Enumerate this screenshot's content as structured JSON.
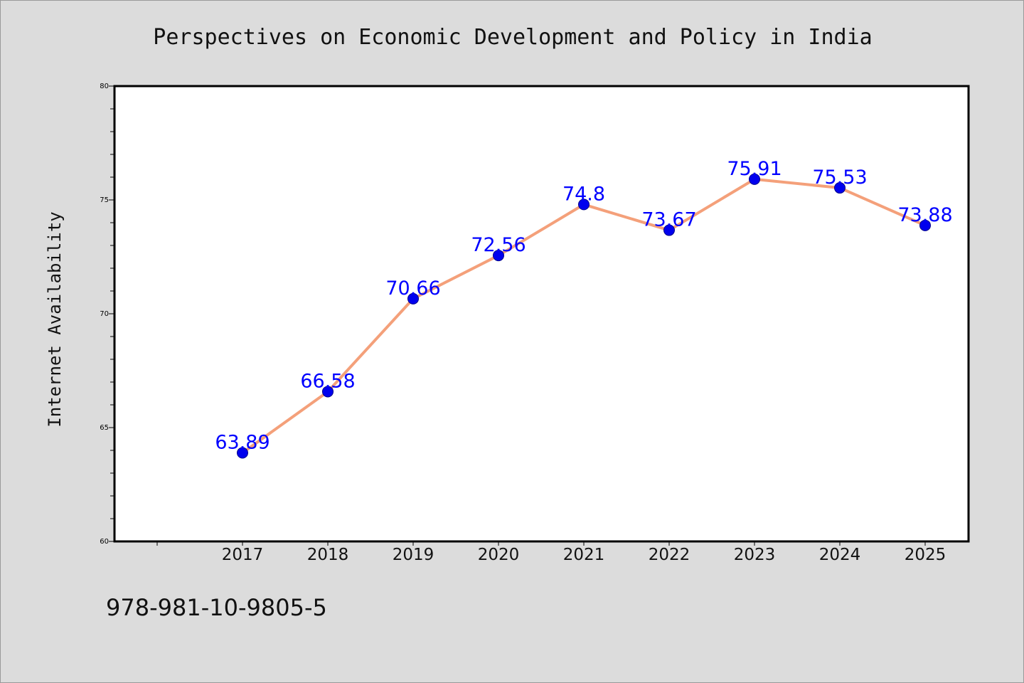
{
  "title": "Perspectives on Economic Development and Policy in India",
  "ylabel": "Internet Availability",
  "footer_code": "978-981-10-9805-5",
  "colors": {
    "line": "#f4a07a",
    "marker": "#0000ee",
    "label": "#0000ff",
    "background": "#dcdcdc",
    "plot_background": "#ffffff"
  },
  "chart_data": {
    "type": "line",
    "title": "Perspectives on Economic Development and Policy in India",
    "xlabel": "",
    "ylabel": "Internet Availability",
    "categories": [
      "2017",
      "2018",
      "2019",
      "2020",
      "2021",
      "2022",
      "2023",
      "2024",
      "2025"
    ],
    "series": [
      {
        "values": [
          63.89,
          66.58,
          70.66,
          72.56,
          74.8,
          73.67,
          75.91,
          75.53,
          73.88
        ],
        "labels": [
          "63.89",
          "66.58",
          "70.66",
          "72.56",
          "74.8",
          "73.67",
          "75.91",
          "75.53",
          "73.88"
        ]
      }
    ],
    "ylim": [
      60,
      80
    ],
    "yticks": [
      "60",
      "65",
      "70",
      "75",
      "80"
    ],
    "grid": false,
    "legend": "none"
  }
}
